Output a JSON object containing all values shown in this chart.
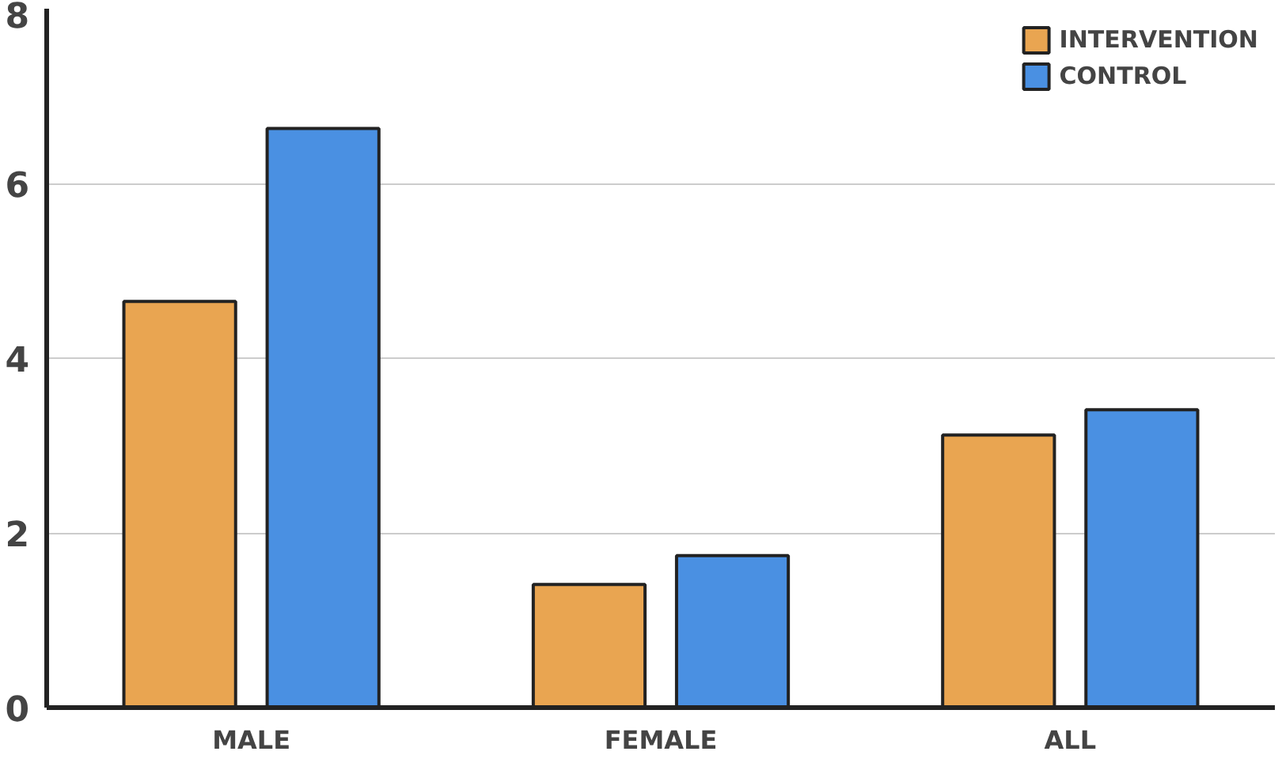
{
  "chart_data": {
    "type": "bar",
    "categories": [
      "MALE",
      "FEMALE",
      "ALL"
    ],
    "series": [
      {
        "name": "INTERVENTION",
        "color": "#e9a551",
        "values": [
          4.65,
          1.41,
          3.12
        ]
      },
      {
        "name": "CONTROL",
        "color": "#4a90e2",
        "values": [
          6.63,
          1.74,
          3.41
        ]
      }
    ],
    "ylim": [
      0,
      8
    ],
    "yticks": [
      0,
      2,
      4,
      6,
      8
    ],
    "grid": "y",
    "legend": "top right"
  }
}
